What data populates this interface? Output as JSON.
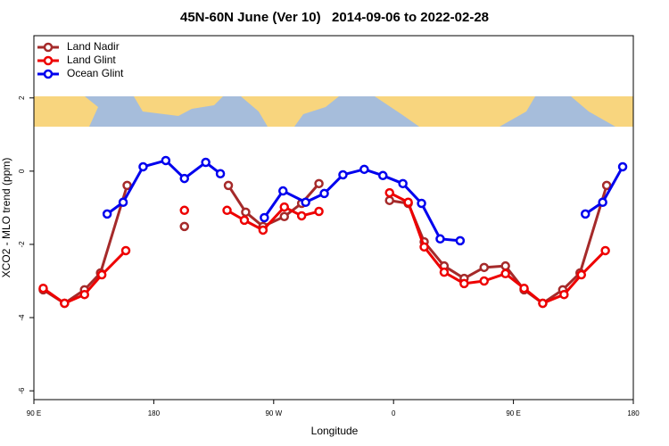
{
  "chart_data": {
    "type": "line",
    "title": "45N-60N June (Ver 10)   2014-09-06 to 2022-02-28",
    "xlabel": "Longitude",
    "ylabel": "XCO2 - MLO trend (ppm)",
    "xlim": [
      90,
      540
    ],
    "xticks": [
      {
        "value": 90,
        "label": "90 E"
      },
      {
        "value": 180,
        "label": "180"
      },
      {
        "value": 270,
        "label": "90 W"
      },
      {
        "value": 360,
        "label": "0"
      },
      {
        "value": 450,
        "label": "90 E"
      },
      {
        "value": 540,
        "label": "180"
      }
    ],
    "ylim": [
      -6.24,
      3.7
    ],
    "yticks": [
      2,
      0,
      -2,
      -4,
      -6
    ],
    "legend": "top-left",
    "series": [
      {
        "name": "Land Nadir",
        "color": "#a52a2a",
        "x": [
          97,
          113,
          128,
          140,
          160,
          null,
          203,
          null,
          236,
          249,
          262,
          278,
          291,
          304,
          null,
          357,
          371,
          383,
          398,
          413,
          428,
          444,
          458,
          472,
          487,
          500,
          520
        ],
        "values": [
          -3.24,
          -3.61,
          -3.24,
          -2.78,
          -0.39,
          null,
          -1.51,
          null,
          -0.39,
          -1.12,
          -1.51,
          -1.24,
          -0.88,
          -0.34,
          null,
          -0.8,
          -0.88,
          -1.93,
          -2.59,
          -2.93,
          -2.63,
          -2.59,
          -3.24,
          -3.61,
          -3.24,
          -2.78,
          -0.39
        ]
      },
      {
        "name": "Land Glint",
        "color": "#ee0000",
        "x": [
          97,
          113,
          128,
          141,
          159,
          null,
          203,
          null,
          235,
          248,
          262,
          278,
          291,
          304,
          null,
          357,
          371,
          383,
          398,
          413,
          428,
          444,
          458,
          472,
          488,
          501,
          519
        ],
        "values": [
          -3.2,
          -3.61,
          -3.37,
          -2.83,
          -2.17,
          null,
          -1.07,
          null,
          -1.07,
          -1.34,
          -1.61,
          -0.98,
          -1.22,
          -1.1,
          null,
          -0.59,
          -0.85,
          -2.07,
          -2.76,
          -3.07,
          -3.0,
          -2.8,
          -3.2,
          -3.61,
          -3.37,
          -2.83,
          -2.17
        ]
      },
      {
        "name": "Ocean Glint",
        "color": "#0000ee",
        "x": [
          145,
          157,
          172,
          189,
          203,
          219,
          230,
          null,
          263,
          277,
          294,
          308,
          322,
          338,
          352,
          367,
          381,
          395,
          410,
          null,
          504,
          517,
          532
        ],
        "values": [
          -1.17,
          -0.85,
          0.12,
          0.29,
          -0.2,
          0.24,
          -0.07,
          null,
          -1.27,
          -0.54,
          -0.85,
          -0.61,
          -0.1,
          0.05,
          -0.12,
          -0.34,
          -0.88,
          -1.85,
          -1.9,
          null,
          -1.17,
          -0.85,
          0.12
        ]
      }
    ]
  }
}
